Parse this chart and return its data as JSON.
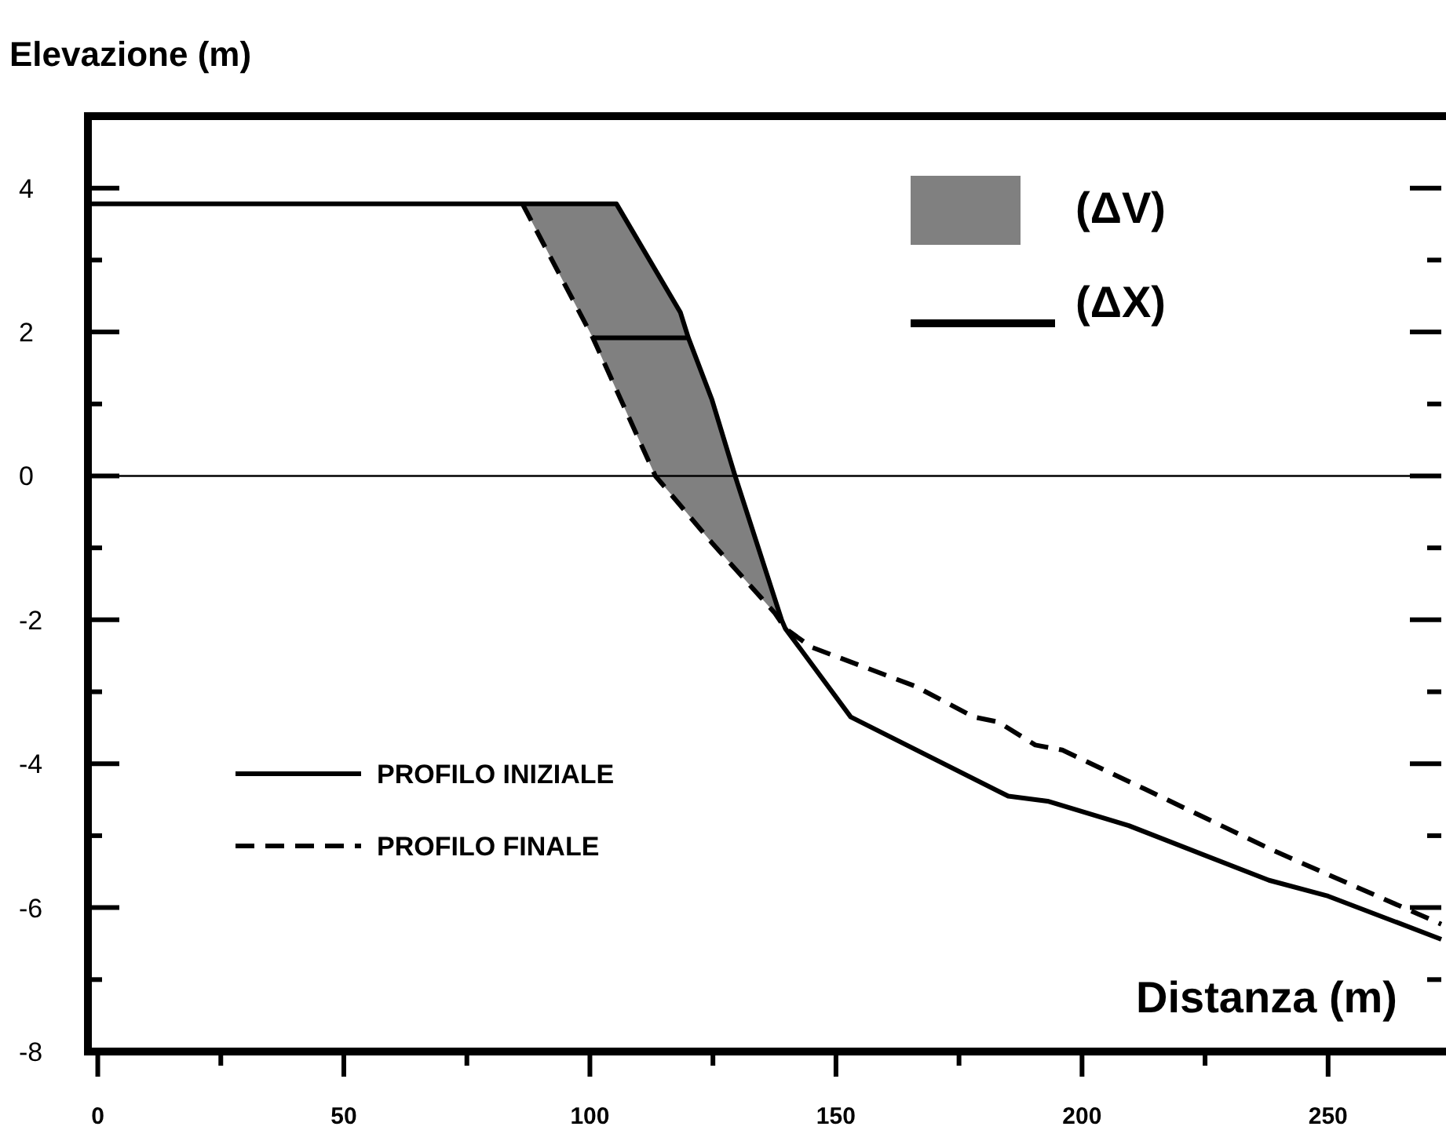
{
  "chart_data": {
    "type": "line",
    "xlabel": "Distanza (m)",
    "ylabel": "Elevazione (m)",
    "xlim": [
      -2,
      273
    ],
    "ylim": [
      -8,
      5
    ],
    "xticks": [
      0,
      {
        "value": 25,
        "label": null
      },
      50,
      {
        "value": 75,
        "label": null
      },
      100,
      {
        "value": 125,
        "label": null
      },
      150,
      {
        "value": 175,
        "label": null
      },
      200,
      {
        "value": 225,
        "label": null
      },
      250
    ],
    "yticks": [
      -8,
      {
        "value": -7,
        "label": null
      },
      -6,
      {
        "value": -5,
        "label": null
      },
      -4,
      {
        "value": -3,
        "label": null
      },
      -2,
      {
        "value": -1,
        "label": null
      },
      0,
      {
        "value": 1,
        "label": null
      },
      2,
      {
        "value": 3,
        "label": null
      },
      4
    ],
    "ref_lines": [
      {
        "axis": "y",
        "value": 0,
        "color": "#000000"
      }
    ],
    "series": [
      {
        "name": "(ΔV)",
        "color": "#808080",
        "x": [
          86.3,
          100.6,
          105.4,
          113.3,
          118.4,
          124.8,
          129.5,
          137.5,
          139.7
        ],
        "values": [
          null,
          null,
          null,
          null,
          null,
          null,
          null,
          null,
          null
        ],
        "lower": [
          3.78,
          1.92,
          1.19,
          0,
          -0.41,
          -0.93,
          -1.29,
          -1.9,
          -2.12
        ],
        "upper": [
          3.78,
          3.78,
          3.78,
          2.86,
          2.27,
          1.06,
          0,
          -1.69,
          -2.12
        ]
      },
      {
        "name": "(ΔX)",
        "color": "#000000",
        "x": [
          100.6,
          120
        ],
        "values": [
          1.92,
          1.92
        ]
      },
      {
        "name": "PROFILO INIZIALE",
        "color": "#000000",
        "line_style": "solid",
        "x": [
          -2,
          105.4,
          118.4,
          120,
          124.8,
          129.5,
          139,
          139.7,
          153,
          185,
          193,
          209.5,
          238,
          250,
          273
        ],
        "values": [
          3.78,
          3.78,
          2.27,
          1.92,
          1.06,
          0,
          -2.01,
          -2.12,
          -3.35,
          -4.45,
          -4.52,
          -4.86,
          -5.62,
          -5.84,
          -6.44
        ]
      },
      {
        "name": "PROFILO FINALE",
        "color": "#000000",
        "line_style": "dashed",
        "x": [
          86.3,
          100.6,
          113.3,
          124.8,
          137.5,
          139.7,
          145,
          166,
          178,
          183,
          190.5,
          196,
          212.7,
          239,
          273
        ],
        "values": [
          3.78,
          1.92,
          0,
          -0.93,
          -1.9,
          -2.12,
          -2.38,
          -2.92,
          -3.35,
          -3.42,
          -3.74,
          -3.81,
          -4.35,
          -5.21,
          -6.23
        ]
      }
    ],
    "legend": "top right",
    "grid": false,
    "marker": "none"
  }
}
